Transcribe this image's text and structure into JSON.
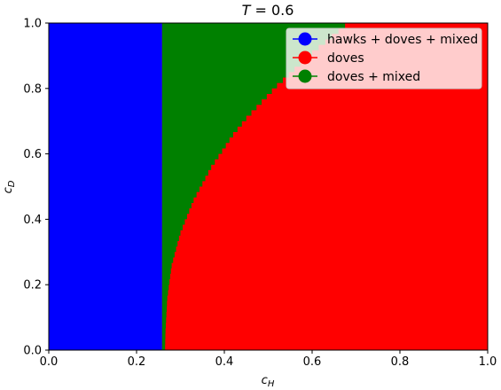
{
  "chart_data": {
    "type": "heatmap",
    "title_var": "T",
    "title_eq": " = 0.6",
    "xlabel_main": "c",
    "xlabel_sub": "H",
    "ylabel_main": "c",
    "ylabel_sub": "D",
    "xlim": [
      0.0,
      1.0
    ],
    "ylim": [
      0.0,
      1.0
    ],
    "xticks": [
      "0.0",
      "0.2",
      "0.4",
      "0.6",
      "0.8",
      "1.0"
    ],
    "yticks": [
      "0.0",
      "0.2",
      "0.4",
      "0.6",
      "0.8",
      "1.0"
    ],
    "grid": false,
    "legend_position": "top-right",
    "regions": [
      {
        "name": "hawks + doves + mixed",
        "color": "#0000ff"
      },
      {
        "name": "doves",
        "color": "#ff0000"
      },
      {
        "name": "doves + mixed",
        "color": "#008000"
      }
    ],
    "hawks_boundary_cH": 0.258,
    "mixed_boundary": {
      "cD": [
        0.0,
        0.05,
        0.1,
        0.15,
        0.2,
        0.25,
        0.3,
        0.35,
        0.4,
        0.45,
        0.5,
        0.55,
        0.6,
        0.65,
        0.7,
        0.75,
        0.8,
        0.85,
        0.9,
        0.95,
        1.0
      ],
      "cH": [
        0.265,
        0.266,
        0.268,
        0.27,
        0.275,
        0.28,
        0.29,
        0.3,
        0.315,
        0.33,
        0.35,
        0.37,
        0.395,
        0.42,
        0.45,
        0.485,
        0.52,
        0.56,
        0.6,
        0.645,
        0.69
      ]
    }
  }
}
